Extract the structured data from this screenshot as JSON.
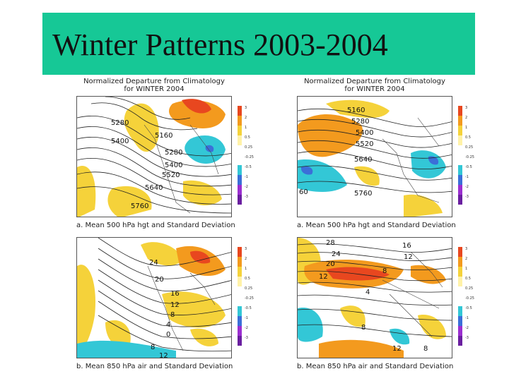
{
  "slide": {
    "title": "Winter Patterns 2003-2004"
  },
  "panels": [
    {
      "header_line1": "Normalized Departure from Climatology",
      "header_line2": "for WINTER 2004",
      "caption": "a. Mean 500   hPa hgt and Standard Deviation",
      "contour_labels": [
        "5280",
        "5160",
        "5400",
        "5280",
        "5400",
        "5520",
        "5640",
        "5760"
      ]
    },
    {
      "header_line1": "Normalized Departure from Climatology",
      "header_line2": "for WINTER 2004",
      "caption": "a. Mean 500   hPa hgt and Standard Deviation",
      "contour_labels": [
        "5160",
        "5280",
        "5400",
        "5520",
        "5640",
        "5760",
        "60"
      ]
    },
    {
      "header_line1": "",
      "header_line2": "",
      "caption": "b. Mean 850 hPa air and Standard Deviation",
      "contour_labels": [
        "24",
        "20",
        "16",
        "12",
        "8",
        "4",
        "0",
        "8",
        "12"
      ]
    },
    {
      "header_line1": "",
      "header_line2": "",
      "caption": "b. Mean 850 hPa air and Standard Deviation",
      "contour_labels": [
        "28",
        "24",
        "20",
        "16",
        "12",
        "8",
        "12",
        "4",
        "8",
        "12",
        "8"
      ]
    }
  ],
  "colors": {
    "title_bg": "#16c896",
    "pos_light": "#f5d23a",
    "pos_mid": "#f39a1e",
    "pos_strong": "#e8471f",
    "neg_light": "#33c7d6",
    "neg_mid": "#3b6fd8",
    "neg_strong": "#9b2fd0"
  },
  "scale": {
    "ticks": [
      "3",
      "2",
      "1",
      "0.5",
      "0.25",
      "-0.25",
      "-0.5",
      "-1",
      "-2",
      "-3"
    ]
  }
}
